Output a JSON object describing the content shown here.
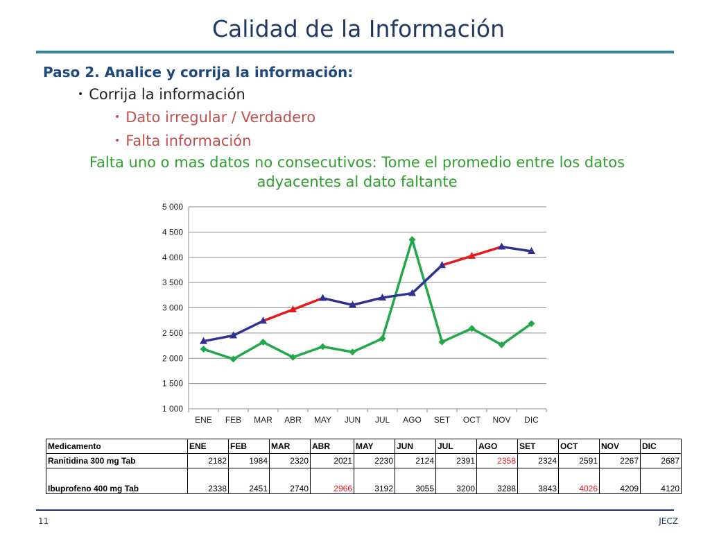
{
  "slide": {
    "title": "Calidad de la Información",
    "step": "Paso 2. Analice y corrija la información:",
    "bullets": [
      "Corrija la información",
      "Dato irregular / Verdadero",
      "Falta información"
    ],
    "note": "Falta uno o mas datos no consecutivos: Tome el promedio entre los datos adyacentes al dato faltante",
    "page_number": "11",
    "footer": "JECZ"
  },
  "chart_data": {
    "type": "line",
    "categories": [
      "ENE",
      "FEB",
      "MAR",
      "ABR",
      "MAY",
      "JUN",
      "JUL",
      "AGO",
      "SET",
      "OCT",
      "NOV",
      "DIC"
    ],
    "ylim": [
      1000,
      5000
    ],
    "yticks": [
      1000,
      1500,
      2000,
      2500,
      3000,
      3500,
      4000,
      4500,
      5000
    ],
    "ytick_labels": [
      "1 000",
      "1 500",
      "2 000",
      "2 500",
      "3 000",
      "3 500",
      "4 000",
      "4 500",
      "5 000"
    ],
    "grid": true,
    "series": [
      {
        "values": [
          2182,
          1984,
          2320,
          2021,
          2230,
          2124,
          2391,
          4350,
          2324,
          2591,
          2267,
          2687
        ],
        "color": "#21a84a",
        "marker": "diamond"
      },
      {
        "values": [
          2338,
          2451,
          2740,
          2966,
          3192,
          3055,
          3200,
          3288,
          3843,
          4026,
          4209,
          4120
        ],
        "color": "#2e3192",
        "marker": "triangle",
        "highlight_color": "#e31a1c",
        "highlight_indices": [
          3,
          9
        ]
      }
    ]
  },
  "table": {
    "headers": [
      "Medicamento",
      "ENE",
      "FEB",
      "MAR",
      "ABR",
      "MAY",
      "JUN",
      "JUL",
      "AGO",
      "SET",
      "OCT",
      "NOV",
      "DIC"
    ],
    "rows": [
      {
        "name": "Ranitidina 300 mg Tab",
        "values": [
          "2182",
          "1984",
          "2320",
          "2021",
          "2230",
          "2124",
          "2391",
          "2358",
          "2324",
          "2591",
          "2267",
          "2687"
        ],
        "highlight": [
          7
        ]
      },
      {
        "name": "Ibuprofeno 400 mg Tab",
        "values": [
          "2338",
          "2451",
          "2740",
          "2966",
          "3192",
          "3055",
          "3200",
          "3288",
          "3843",
          "4026",
          "4209",
          "4120"
        ],
        "highlight": [
          3,
          9
        ]
      }
    ],
    "highlight_color": "#e31a1c"
  }
}
